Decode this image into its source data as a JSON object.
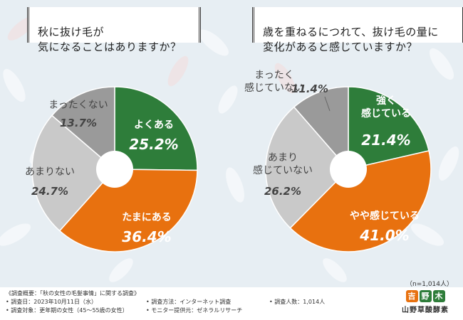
{
  "colors": {
    "green": "#2e7d3a",
    "orange": "#e8710f",
    "light_gray": "#c9c9c9",
    "dark_gray": "#9a9a9a",
    "logo_orange": "#e8710f",
    "logo_green": "#2e7d3a"
  },
  "questions": {
    "q1": "秋に抜け毛が\n気になることはありますか？",
    "q2": "歳を重ねるにつれて、抜け毛の量に\n変化があると感じていますか？"
  },
  "chart_data": [
    {
      "type": "pie",
      "title": "秋に抜け毛が気になることはありますか？",
      "categories": [
        "よくある",
        "たまにある",
        "あまりない",
        "まったくない"
      ],
      "values": [
        25.2,
        36.4,
        24.7,
        13.7
      ],
      "value_labels": [
        "25.2%",
        "36.4%",
        "24.7%",
        "13.7%"
      ],
      "colors": [
        "#2e7d3a",
        "#e8710f",
        "#c9c9c9",
        "#9a9a9a"
      ]
    },
    {
      "type": "pie",
      "title": "歳を重ねるにつれて、抜け毛の量に変化があると感じていますか？",
      "categories": [
        "強く感じている",
        "やや感じている",
        "あまり感じていない",
        "まったく感じていない"
      ],
      "category_lines": [
        [
          "強く",
          "感じている"
        ],
        [
          "やや感じている"
        ],
        [
          "あまり",
          "感じていない"
        ],
        [
          "まったく",
          "感じていない"
        ]
      ],
      "values": [
        21.4,
        41.0,
        26.2,
        11.4
      ],
      "value_labels": [
        "21.4%",
        "41.0%",
        "26.2%",
        "11.4%"
      ],
      "colors": [
        "#2e7d3a",
        "#e8710f",
        "#c9c9c9",
        "#9a9a9a"
      ]
    }
  ],
  "n_note": "（n=1,014人）",
  "footer": {
    "summary": "《調査概要：「秋の女性の毛髪事情」に関する調査》",
    "date": "• 調査日：2023年10月11日（水）",
    "target": "• 調査対象：更年期の女性（45～55歳の女性）",
    "method": "• 調査方法：インターネット調査",
    "provider": "• モニター提供元：ゼネラルリサーチ",
    "count": "• 調査人数：1,014人"
  },
  "logo": {
    "marks": [
      "吉",
      "野",
      "木"
    ],
    "text": "山野草酸酵素"
  }
}
